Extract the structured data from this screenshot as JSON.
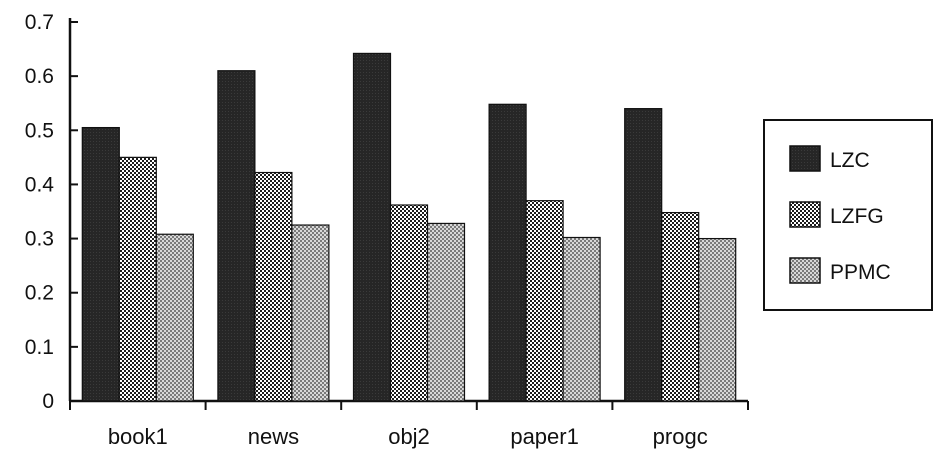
{
  "chart_data": {
    "type": "bar",
    "categories": [
      "book1",
      "news",
      "obj2",
      "paper1",
      "progc"
    ],
    "series": [
      {
        "name": "LZC",
        "values": [
          0.505,
          0.61,
          0.642,
          0.548,
          0.54
        ],
        "pattern": "solid-dark"
      },
      {
        "name": "LZFG",
        "values": [
          0.45,
          0.422,
          0.362,
          0.37,
          0.348
        ],
        "pattern": "checker-dense"
      },
      {
        "name": "PPMC",
        "values": [
          0.308,
          0.325,
          0.328,
          0.302,
          0.3
        ],
        "pattern": "checker-light"
      }
    ],
    "ylim": [
      0,
      0.7
    ],
    "yticks": [
      "0",
      "0.1",
      "0.2",
      "0.3",
      "0.4",
      "0.5",
      "0.6",
      "0.7"
    ],
    "legend_position": "right",
    "grid": false,
    "title": "",
    "xlabel": "",
    "ylabel": ""
  }
}
